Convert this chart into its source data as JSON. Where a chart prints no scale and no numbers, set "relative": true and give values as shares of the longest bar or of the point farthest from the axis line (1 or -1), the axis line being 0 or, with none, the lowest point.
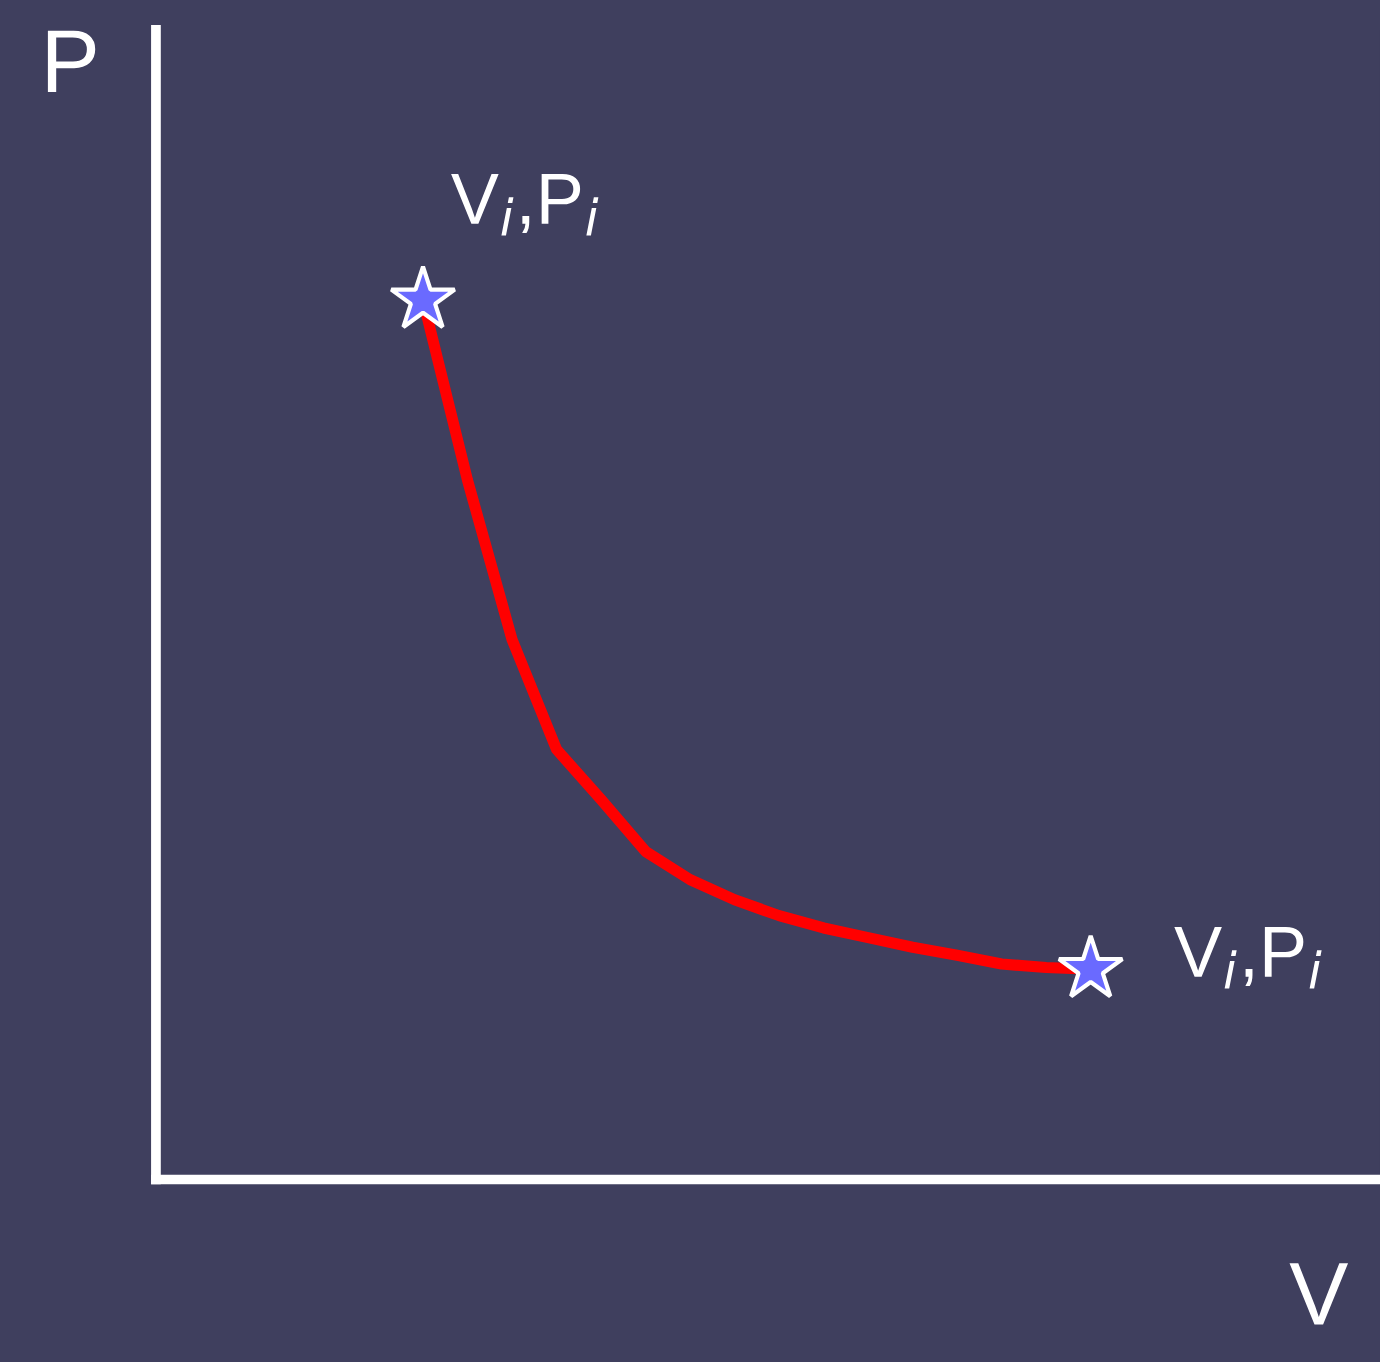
{
  "chart_data": {
    "type": "line",
    "relative": true,
    "xlabel": "V",
    "ylabel": "P",
    "tick_labels": false,
    "categories": [
      null,
      null,
      null,
      null,
      null,
      null,
      null,
      null,
      null,
      null,
      null,
      null,
      null,
      null,
      null,
      null,
      null,
      null,
      null,
      null,
      null,
      null,
      null,
      null,
      null,
      null,
      null,
      null
    ],
    "series": [
      {
        "color": "#ff0000",
        "values": [
          null,
          null,
          null,
          null,
          null,
          null,
          1.0,
          0.795,
          0.614,
          0.489,
          0.432,
          0.373,
          0.341,
          0.318,
          0.3,
          0.286,
          0.275,
          0.264,
          0.255,
          0.245,
          0.241,
          0.239,
          null,
          null,
          null,
          null,
          null,
          null
        ]
      }
    ],
    "annotations": [
      "V$_{i}$,P$_{i}$",
      "V$_{i}$,P$_{i}$"
    ]
  }
}
